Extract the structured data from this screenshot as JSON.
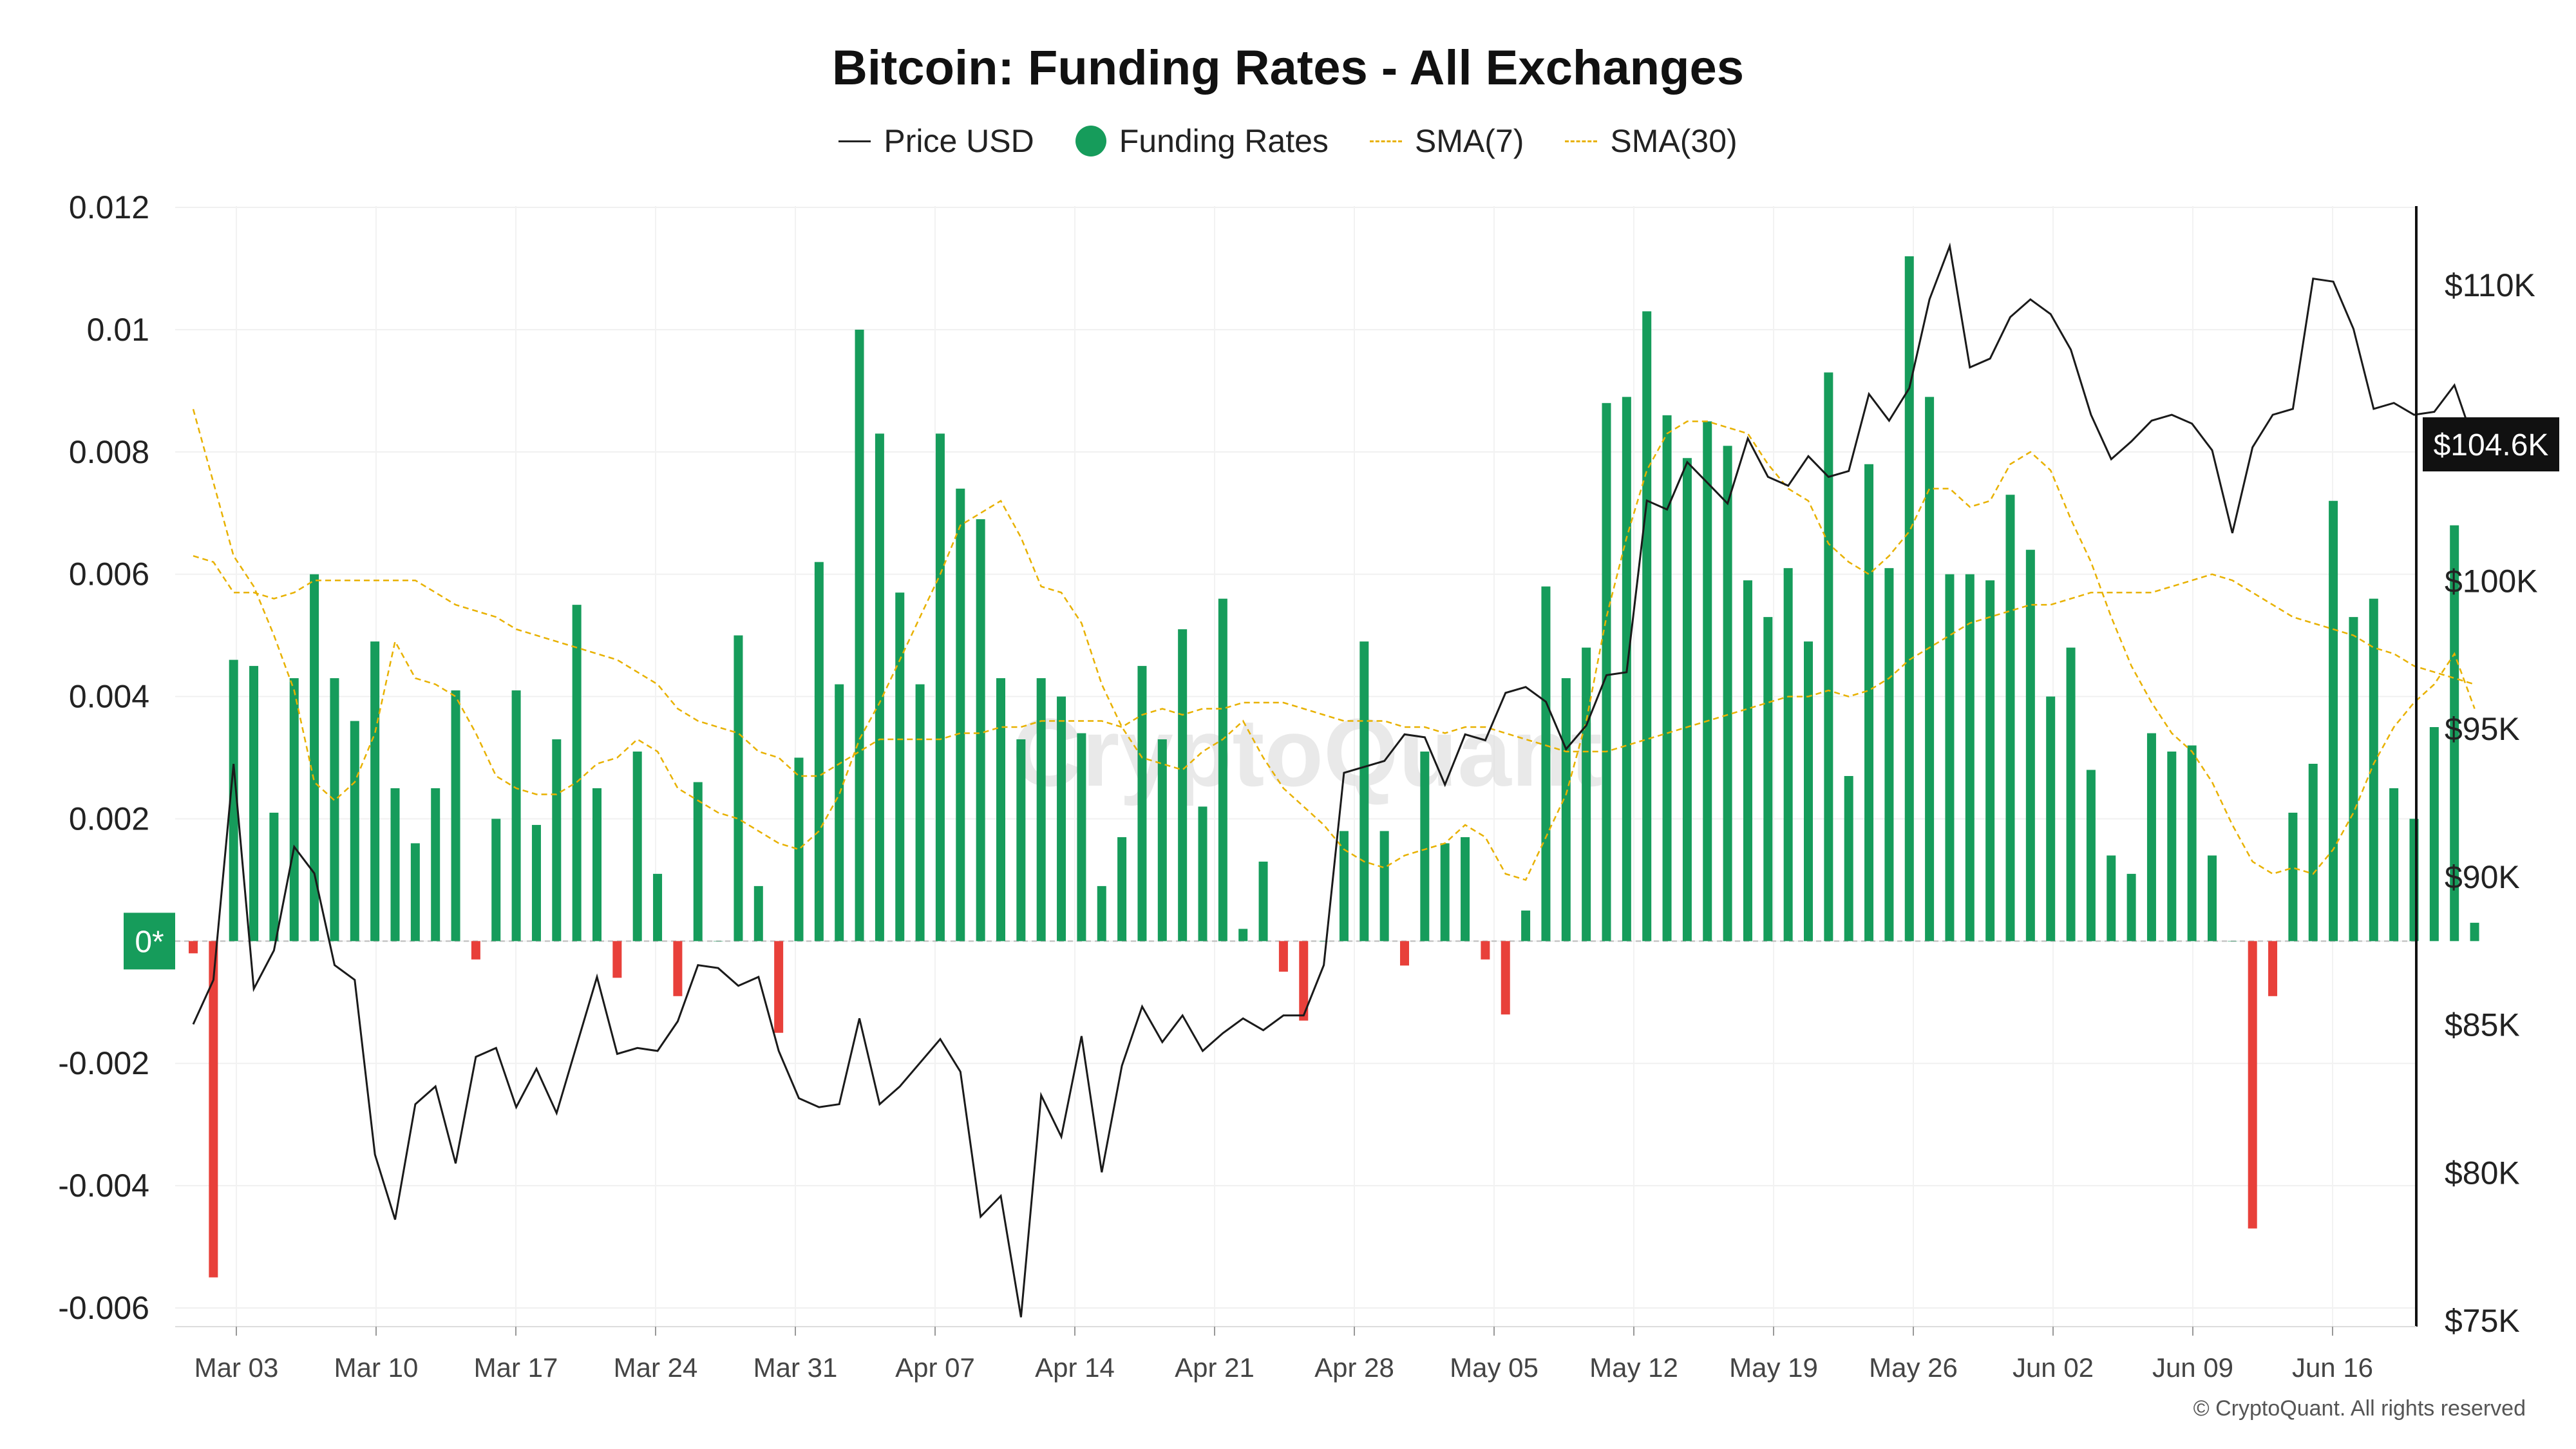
{
  "chart_data": {
    "type": "bar",
    "title": "Bitcoin: Funding Rates - All Exchanges",
    "legend": [
      "Price USD",
      "Funding Rates",
      "SMA(7)",
      "SMA(30)"
    ],
    "legend_position": "top-center",
    "xlabel": "",
    "ylabel": "",
    "x_ticks": [
      "Mar 03",
      "Mar 10",
      "Mar 17",
      "Mar 24",
      "Mar 31",
      "Apr 07",
      "Apr 14",
      "Apr 21",
      "Apr 28",
      "May 05",
      "May 12",
      "May 19",
      "May 26",
      "Jun 02",
      "Jun 09",
      "Jun 16"
    ],
    "y_left_ticks": [
      "0.012",
      "0.01",
      "0.008",
      "0.006",
      "0.004",
      "0.002",
      "0",
      "-0.002",
      "-0.004",
      "-0.006"
    ],
    "y_right_ticks": [
      "$110K",
      "$100K",
      "$95K",
      "$90K",
      "$85K",
      "$80K",
      "$75K"
    ],
    "y_left_range": [
      -0.0062,
      0.0122
    ],
    "grid": true,
    "zero_label": "0*",
    "last_price_label": "$104.6K",
    "watermark": "CryptoQuant",
    "colors": {
      "positive": "#169c5b",
      "negative": "#e8403a",
      "price": "#1a1a1a",
      "sma": "#e8b100",
      "badge": "#111111"
    },
    "series": [
      {
        "name": "Funding Rates",
        "type": "bar",
        "dates_start": "Mar 01",
        "values": [
          -0.0002,
          -0.0055,
          0.0046,
          0.0045,
          0.0021,
          0.0043,
          0.006,
          0.0043,
          0.0036,
          0.0049,
          0.0025,
          0.0016,
          0.0025,
          0.0041,
          -0.0003,
          0.002,
          0.0041,
          0.0019,
          0.0033,
          0.0055,
          0.0025,
          -0.0006,
          0.0031,
          0.0011,
          -0.0009,
          0.0026,
          0.0,
          0.005,
          0.0009,
          -0.0015,
          0.003,
          0.0062,
          0.0042,
          0.01,
          0.0083,
          0.0057,
          0.0042,
          0.0083,
          0.0074,
          0.0069,
          0.0043,
          0.0033,
          0.0043,
          0.004,
          0.0034,
          0.0009,
          0.0017,
          0.0045,
          0.0033,
          0.0051,
          0.0022,
          0.0056,
          0.0002,
          0.0013,
          -0.0005,
          -0.0013,
          0.0,
          0.0018,
          0.0049,
          0.0018,
          -0.0004,
          0.0031,
          0.0016,
          0.0017,
          -0.0003,
          -0.0012,
          0.0005,
          0.0058,
          0.0043,
          0.0048,
          0.0088,
          0.0089,
          0.0103,
          0.0086,
          0.0079,
          0.0085,
          0.0081,
          0.0059,
          0.0053,
          0.0061,
          0.0049,
          0.0093,
          0.0027,
          0.0078,
          0.0061,
          0.0112,
          0.0089,
          0.006,
          0.006,
          0.0059,
          0.0073,
          0.0064,
          0.004,
          0.0048,
          0.0028,
          0.0014,
          0.0011,
          0.0034,
          0.0031,
          0.0032,
          0.0014,
          0.0,
          -0.0047,
          -0.0009,
          0.0021,
          0.0029,
          0.0072,
          0.0053,
          0.0056,
          0.0025,
          0.002,
          0.0035,
          0.0068,
          0.0003
        ]
      },
      {
        "name": "Price USD",
        "type": "line",
        "axis": "right",
        "values": [
          85.0,
          86.5,
          93.8,
          86.2,
          87.5,
          91.0,
          90.1,
          87.0,
          86.5,
          80.6,
          78.4,
          82.3,
          82.9,
          80.3,
          83.9,
          84.2,
          82.2,
          83.5,
          82.0,
          84.3,
          86.6,
          84.0,
          84.2,
          84.1,
          85.1,
          87.0,
          86.9,
          86.3,
          86.6,
          84.1,
          82.5,
          82.2,
          82.3,
          85.2,
          82.3,
          82.9,
          83.7,
          84.5,
          83.4,
          78.5,
          79.2,
          75.1,
          82.6,
          81.2,
          84.6,
          80.0,
          83.6,
          85.6,
          84.4,
          85.3,
          84.1,
          84.7,
          85.2,
          84.8,
          85.3,
          85.3,
          87.0,
          93.5,
          93.7,
          93.9,
          94.8,
          94.7,
          93.1,
          94.8,
          94.6,
          96.2,
          96.4,
          95.9,
          94.3,
          95.1,
          96.8,
          96.9,
          102.7,
          102.4,
          104.0,
          103.3,
          102.6,
          104.8,
          103.5,
          103.2,
          104.2,
          103.5,
          103.7,
          106.3,
          105.4,
          106.5,
          109.5,
          111.3,
          107.2,
          107.5,
          108.9,
          109.5,
          109.0,
          107.8,
          105.6,
          104.1,
          104.7,
          105.4,
          105.6,
          105.3,
          104.4,
          101.6,
          104.5,
          105.6,
          105.8,
          110.2,
          110.1,
          108.5,
          105.8,
          106.0,
          105.6,
          105.7,
          106.6,
          104.6
        ]
      },
      {
        "name": "SMA(7)",
        "type": "line",
        "values": [
          0.0087,
          0.0075,
          0.0063,
          0.0058,
          0.005,
          0.0041,
          0.0026,
          0.0023,
          0.0026,
          0.0034,
          0.0049,
          0.0043,
          0.0042,
          0.004,
          0.0034,
          0.0027,
          0.0025,
          0.0024,
          0.0024,
          0.0026,
          0.0029,
          0.003,
          0.0033,
          0.0031,
          0.0025,
          0.0023,
          0.0021,
          0.002,
          0.0018,
          0.0016,
          0.0015,
          0.0018,
          0.0024,
          0.0033,
          0.0039,
          0.0046,
          0.0053,
          0.006,
          0.0068,
          0.007,
          0.0072,
          0.0066,
          0.0058,
          0.0057,
          0.0052,
          0.0042,
          0.0035,
          0.003,
          0.0029,
          0.0028,
          0.0031,
          0.0033,
          0.0036,
          0.003,
          0.0025,
          0.0022,
          0.0019,
          0.0015,
          0.0013,
          0.0012,
          0.0014,
          0.0015,
          0.0016,
          0.0019,
          0.0017,
          0.0011,
          0.001,
          0.0017,
          0.0024,
          0.0036,
          0.0053,
          0.0066,
          0.0077,
          0.0083,
          0.0085,
          0.0085,
          0.0084,
          0.0083,
          0.0078,
          0.0074,
          0.0072,
          0.0065,
          0.0062,
          0.006,
          0.0063,
          0.0067,
          0.0074,
          0.0074,
          0.0071,
          0.0072,
          0.0078,
          0.008,
          0.0077,
          0.0069,
          0.0062,
          0.0053,
          0.0045,
          0.0039,
          0.0034,
          0.0031,
          0.0026,
          0.0019,
          0.0013,
          0.0011,
          0.0012,
          0.0011,
          0.0015,
          0.0021,
          0.0029,
          0.0035,
          0.0039,
          0.0042,
          0.0047,
          0.0038
        ]
      },
      {
        "name": "SMA(30)",
        "type": "line",
        "values": [
          0.0063,
          0.0062,
          0.0057,
          0.0057,
          0.0056,
          0.0057,
          0.0059,
          0.0059,
          0.0059,
          0.0059,
          0.0059,
          0.0059,
          0.0057,
          0.0055,
          0.0054,
          0.0053,
          0.0051,
          0.005,
          0.0049,
          0.0048,
          0.0047,
          0.0046,
          0.0044,
          0.0042,
          0.0038,
          0.0036,
          0.0035,
          0.0034,
          0.0031,
          0.003,
          0.0027,
          0.0027,
          0.0029,
          0.0031,
          0.0033,
          0.0033,
          0.0033,
          0.0033,
          0.0034,
          0.0034,
          0.0035,
          0.0035,
          0.0036,
          0.0036,
          0.0036,
          0.0036,
          0.0035,
          0.0037,
          0.0038,
          0.0037,
          0.0038,
          0.0038,
          0.0039,
          0.0039,
          0.0039,
          0.0038,
          0.0037,
          0.0036,
          0.0036,
          0.0036,
          0.0035,
          0.0035,
          0.0034,
          0.0035,
          0.0035,
          0.0034,
          0.0033,
          0.0032,
          0.0031,
          0.0031,
          0.0031,
          0.0032,
          0.0033,
          0.0034,
          0.0035,
          0.0036,
          0.0037,
          0.0038,
          0.0039,
          0.004,
          0.004,
          0.0041,
          0.004,
          0.0041,
          0.0043,
          0.0046,
          0.0048,
          0.005,
          0.0052,
          0.0053,
          0.0054,
          0.0055,
          0.0055,
          0.0056,
          0.0057,
          0.0057,
          0.0057,
          0.0057,
          0.0058,
          0.0059,
          0.006,
          0.0059,
          0.0057,
          0.0055,
          0.0053,
          0.0052,
          0.0051,
          0.005,
          0.0048,
          0.0047,
          0.0045,
          0.0044,
          0.0043,
          0.0042
        ]
      }
    ],
    "copyright": "© CryptoQuant. All rights reserved"
  }
}
